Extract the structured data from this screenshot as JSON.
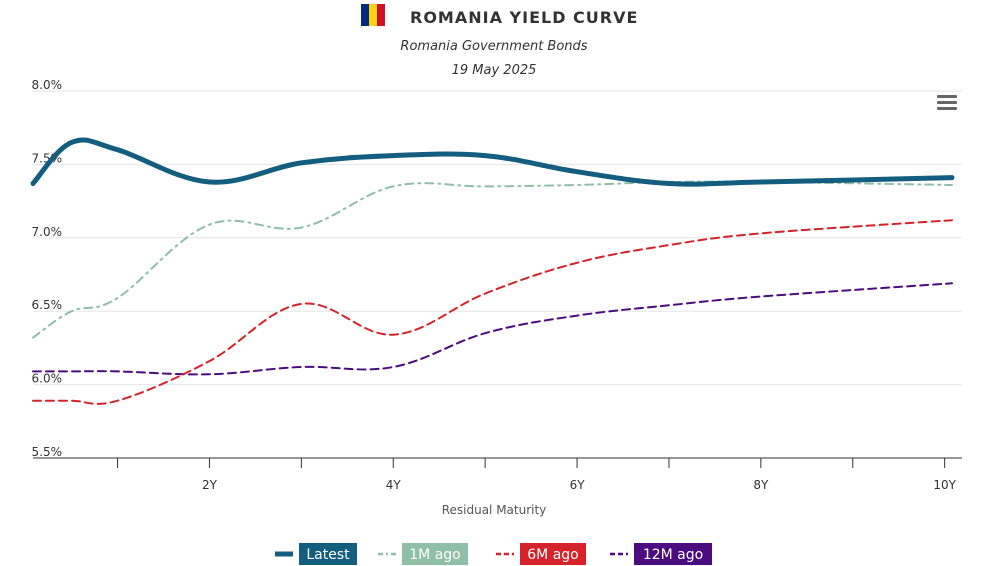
{
  "chart_data": {
    "type": "line",
    "title": "ROMANIA YIELD CURVE",
    "subtitle": "Romania Government Bonds",
    "date": "19 May 2025",
    "xlabel": "Residual Maturity",
    "ylabel": "",
    "x_tick_labels": [
      "2Y",
      "4Y",
      "6Y",
      "8Y",
      "10Y"
    ],
    "x_tick_values": [
      2,
      4,
      6,
      8,
      10
    ],
    "x_minor_ticks": [
      1,
      3,
      5,
      7,
      9
    ],
    "xlim": [
      0.08,
      10.08
    ],
    "y_tick_labels": [
      "5.5%",
      "6.0%",
      "6.5%",
      "7.0%",
      "7.5%",
      "8.0%"
    ],
    "y_tick_values": [
      5.5,
      6.0,
      6.5,
      7.0,
      7.5,
      8.0
    ],
    "ylim": [
      5.5,
      8.0
    ],
    "grid": true,
    "legend_position": "bottom",
    "series": [
      {
        "name": "Latest",
        "color": "#135e7f",
        "style": "solid",
        "x": [
          0.08,
          0.5,
          1,
          2,
          3,
          4,
          5,
          6,
          7,
          8,
          10.08
        ],
        "y": [
          7.37,
          7.65,
          7.6,
          7.38,
          7.51,
          7.56,
          7.56,
          7.45,
          7.37,
          7.38,
          7.41
        ]
      },
      {
        "name": "1M ago",
        "color": "#8fbfa7",
        "style": "dash-dot",
        "x": [
          0.08,
          0.5,
          1,
          2,
          3,
          4,
          5,
          6,
          7,
          8,
          10.08
        ],
        "y": [
          6.32,
          6.5,
          6.59,
          7.09,
          7.07,
          7.35,
          7.35,
          7.36,
          7.38,
          7.38,
          7.36
        ]
      },
      {
        "name": "6M ago",
        "color": "#d6232b",
        "style": "dash",
        "x": [
          0.08,
          0.5,
          1,
          2,
          3,
          4,
          5,
          6,
          7,
          8,
          10.08
        ],
        "y": [
          5.89,
          5.89,
          5.89,
          6.16,
          6.55,
          6.34,
          6.62,
          6.83,
          6.95,
          7.03,
          7.12
        ]
      },
      {
        "name": "12M ago",
        "color": "#4b0c7f",
        "style": "dash",
        "x": [
          0.08,
          0.5,
          1,
          2,
          3,
          4,
          5,
          6,
          7,
          8,
          10.08
        ],
        "y": [
          6.09,
          6.09,
          6.09,
          6.07,
          6.12,
          6.12,
          6.35,
          6.47,
          6.54,
          6.6,
          6.69
        ]
      }
    ]
  },
  "icons": {
    "flag": "romania-flag-icon",
    "menu": "hamburger-menu-icon"
  },
  "flag_colors": [
    "#002b7f",
    "#fcd116",
    "#ce1126"
  ]
}
